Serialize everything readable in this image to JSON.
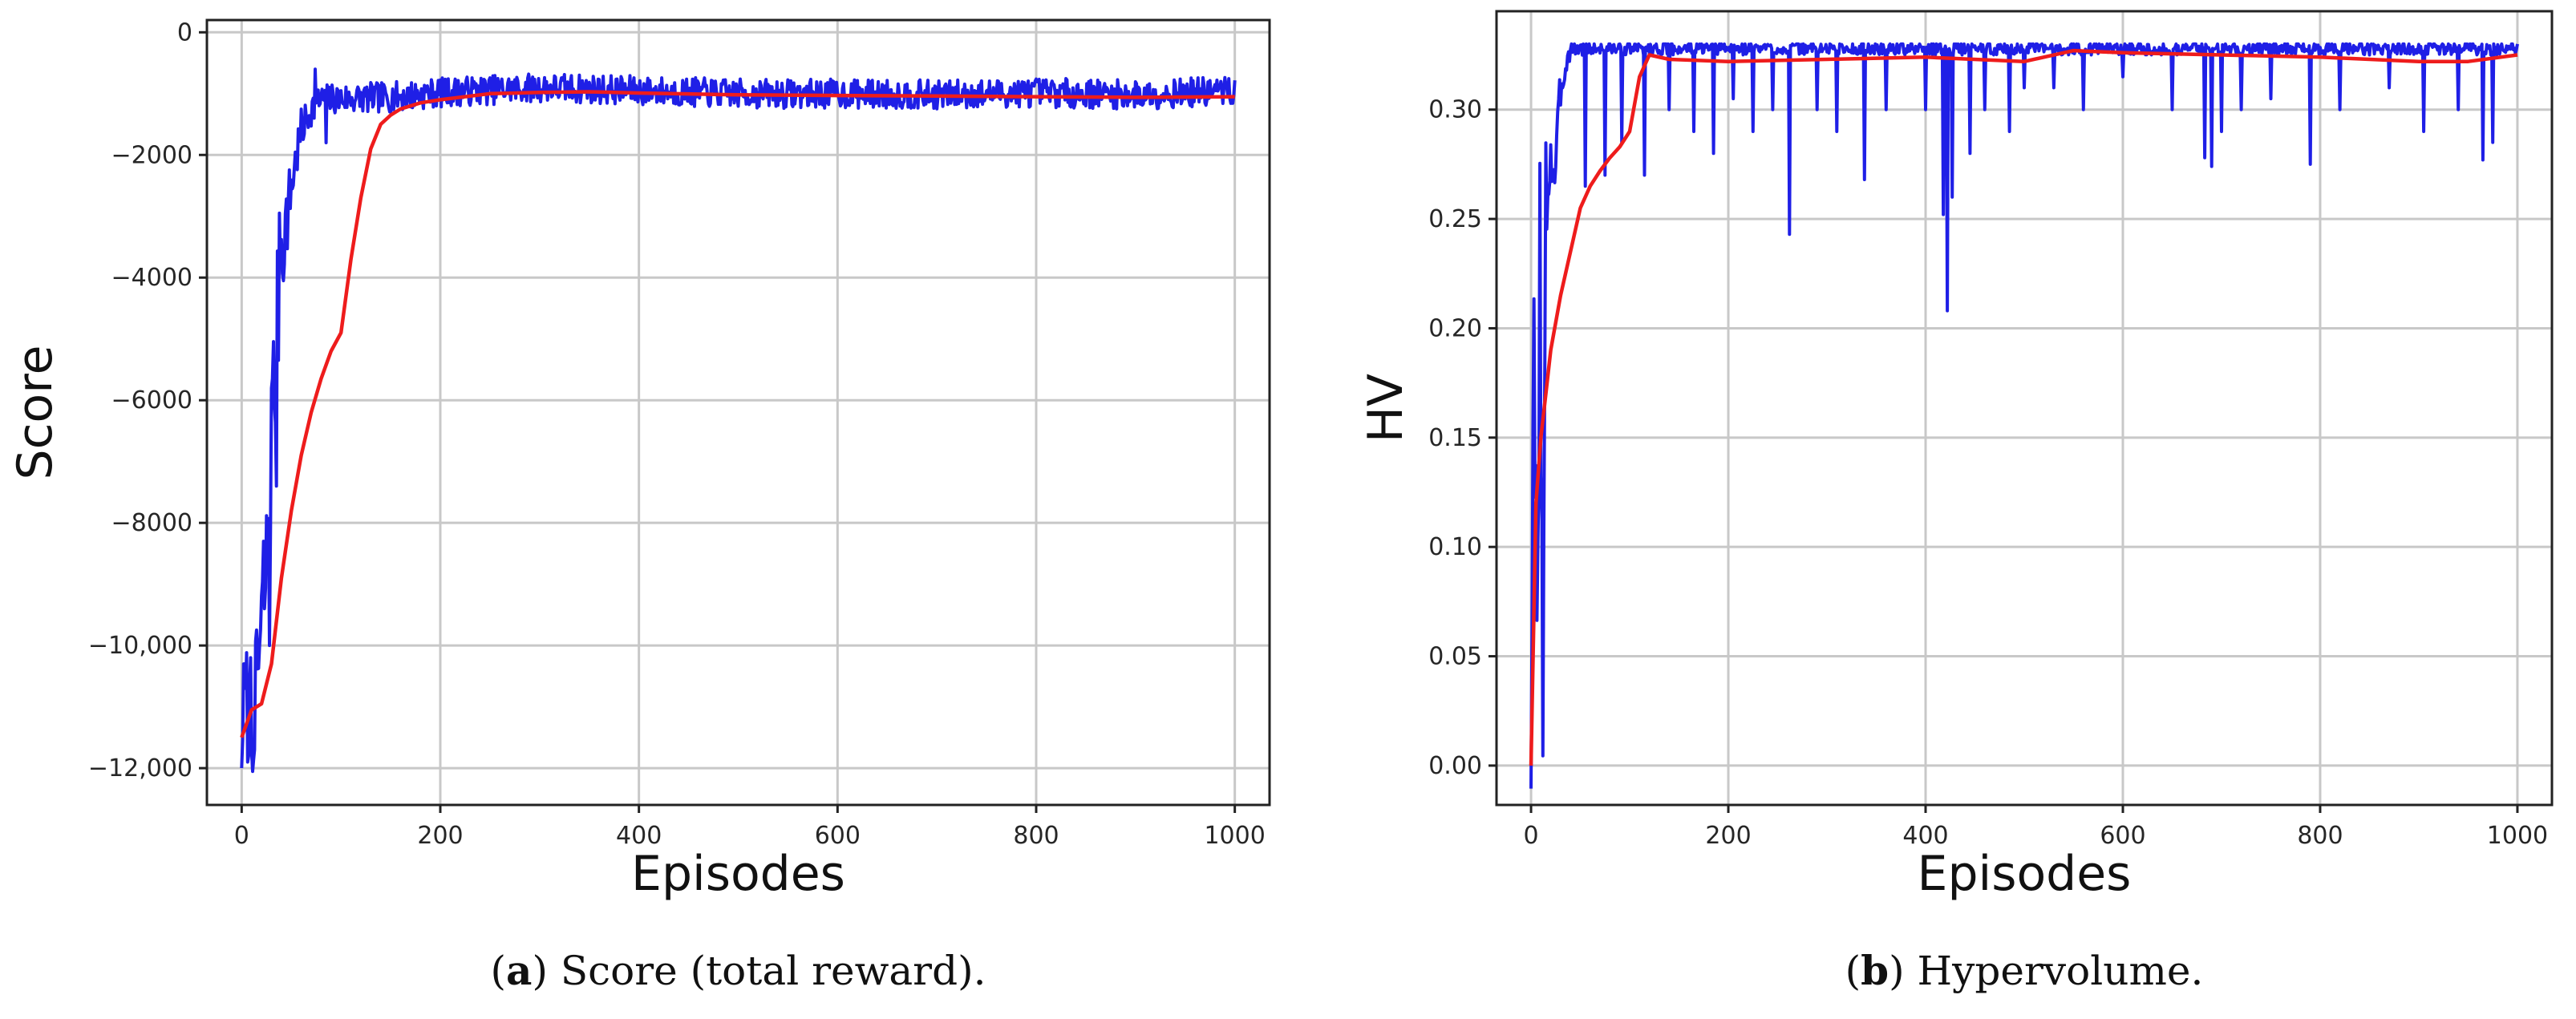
{
  "chart_data": [
    {
      "type": "line",
      "xlabel": "Episodes",
      "ylabel": "Score",
      "caption": {
        "letter": "a",
        "text": "Score (total reward)."
      },
      "xlim": [
        -35,
        1035
      ],
      "ylim": [
        -12600,
        200
      ],
      "x_ticks": [
        0,
        200,
        400,
        600,
        800,
        1000
      ],
      "x_tick_labels": [
        "0",
        "200",
        "400",
        "600",
        "800",
        "1000"
      ],
      "y_ticks": [
        0,
        -2000,
        -4000,
        -6000,
        -8000,
        -10000,
        -12000
      ],
      "y_tick_labels": [
        "0",
        "−2000",
        "−4000",
        "−6000",
        "−8000",
        "−10,000",
        "−12,000"
      ],
      "grid": true,
      "series": [
        {
          "role": "raw",
          "color": "#1f1fe6",
          "noise_seed": 7,
          "x": [
            0,
            5,
            10,
            15,
            20,
            25,
            30,
            35,
            40,
            45,
            50,
            60,
            70,
            80,
            100,
            150,
            200,
            300,
            400,
            500,
            600,
            700,
            800,
            900,
            1000
          ],
          "y": [
            -11200,
            -10800,
            -11500,
            -10600,
            -9800,
            -8800,
            -6500,
            -5200,
            -3300,
            -3100,
            -2500,
            -1600,
            -1250,
            -1100,
            -1080,
            -1060,
            -980,
            -900,
            -950,
            -1000,
            -1000,
            -1020,
            -980,
            -1020,
            -950
          ],
          "noise": [
            800,
            800,
            800,
            900,
            1100,
            1300,
            1400,
            1400,
            900,
            700,
            500,
            350,
            280,
            260,
            250,
            250,
            240,
            240,
            240,
            240,
            240,
            240,
            240,
            240,
            240
          ],
          "spikes": [
            {
              "x": 0,
              "y": -12000
            },
            {
              "x": 2,
              "y": -10300
            },
            {
              "x": 6,
              "y": -11900
            },
            {
              "x": 9,
              "y": -10200
            },
            {
              "x": 13,
              "y": -11700
            },
            {
              "x": 22,
              "y": -8300
            },
            {
              "x": 28,
              "y": -10000
            },
            {
              "x": 31,
              "y": -5650
            },
            {
              "x": 35,
              "y": -7400
            },
            {
              "x": 38,
              "y": -2950
            },
            {
              "x": 42,
              "y": -4050
            },
            {
              "x": 74,
              "y": -600
            },
            {
              "x": 85,
              "y": -1800
            }
          ]
        },
        {
          "role": "smoothed",
          "color": "#ee1c1c",
          "x": [
            0,
            10,
            20,
            30,
            40,
            50,
            60,
            70,
            80,
            90,
            100,
            110,
            120,
            130,
            140,
            150,
            160,
            180,
            200,
            250,
            300,
            350,
            400,
            500,
            600,
            700,
            800,
            900,
            1000
          ],
          "y": [
            -11500,
            -11050,
            -10950,
            -10300,
            -8900,
            -7800,
            -6900,
            -6200,
            -5650,
            -5200,
            -4900,
            -3700,
            -2700,
            -1900,
            -1500,
            -1350,
            -1250,
            -1150,
            -1100,
            -1000,
            -980,
            -970,
            -990,
            -1020,
            -1030,
            -1040,
            -1050,
            -1060,
            -1050
          ]
        }
      ]
    },
    {
      "type": "line",
      "xlabel": "Episodes",
      "ylabel": "HV",
      "caption": {
        "letter": "b",
        "text": "Hypervolume."
      },
      "xlim": [
        -35,
        1035
      ],
      "ylim": [
        -0.018,
        0.345
      ],
      "x_ticks": [
        0,
        200,
        400,
        600,
        800,
        1000
      ],
      "x_tick_labels": [
        "0",
        "200",
        "400",
        "600",
        "800",
        "1000"
      ],
      "y_ticks": [
        0.0,
        0.05,
        0.1,
        0.15,
        0.2,
        0.25,
        0.3
      ],
      "y_tick_labels": [
        "0.00",
        "0.05",
        "0.10",
        "0.15",
        "0.20",
        "0.25",
        "0.30"
      ],
      "grid": true,
      "series": [
        {
          "role": "raw",
          "color": "#1f1fe6",
          "noise_seed": 3,
          "x": [
            0,
            3,
            6,
            9,
            12,
            15,
            20,
            25,
            30,
            35,
            40,
            60,
            100,
            200,
            300,
            400,
            500,
            600,
            700,
            800,
            900,
            1000
          ],
          "y": [
            0.0,
            0.18,
            0.05,
            0.25,
            0.0,
            0.26,
            0.28,
            0.27,
            0.31,
            0.32,
            0.328,
            0.328,
            0.328,
            0.328,
            0.328,
            0.328,
            0.328,
            0.328,
            0.328,
            0.328,
            0.328,
            0.328
          ],
          "noise": [
            0.02,
            0.06,
            0.06,
            0.05,
            0.05,
            0.03,
            0.02,
            0.02,
            0.01,
            0.006,
            0.004,
            0.003,
            0.003,
            0.003,
            0.003,
            0.003,
            0.003,
            0.003,
            0.003,
            0.003,
            0.003,
            0.003
          ],
          "dips": [
            {
              "x": 55,
              "y": 0.265
            },
            {
              "x": 75,
              "y": 0.27
            },
            {
              "x": 92,
              "y": 0.285
            },
            {
              "x": 115,
              "y": 0.27
            },
            {
              "x": 140,
              "y": 0.3
            },
            {
              "x": 165,
              "y": 0.29
            },
            {
              "x": 185,
              "y": 0.28
            },
            {
              "x": 205,
              "y": 0.305
            },
            {
              "x": 225,
              "y": 0.29
            },
            {
              "x": 245,
              "y": 0.3
            },
            {
              "x": 262,
              "y": 0.243
            },
            {
              "x": 290,
              "y": 0.3
            },
            {
              "x": 310,
              "y": 0.29
            },
            {
              "x": 338,
              "y": 0.268
            },
            {
              "x": 360,
              "y": 0.3
            },
            {
              "x": 400,
              "y": 0.3
            },
            {
              "x": 418,
              "y": 0.252
            },
            {
              "x": 422,
              "y": 0.208
            },
            {
              "x": 427,
              "y": 0.26
            },
            {
              "x": 445,
              "y": 0.28
            },
            {
              "x": 460,
              "y": 0.3
            },
            {
              "x": 485,
              "y": 0.29
            },
            {
              "x": 500,
              "y": 0.31
            },
            {
              "x": 530,
              "y": 0.31
            },
            {
              "x": 560,
              "y": 0.3
            },
            {
              "x": 600,
              "y": 0.315
            },
            {
              "x": 650,
              "y": 0.3
            },
            {
              "x": 683,
              "y": 0.278
            },
            {
              "x": 690,
              "y": 0.274
            },
            {
              "x": 700,
              "y": 0.29
            },
            {
              "x": 720,
              "y": 0.3
            },
            {
              "x": 750,
              "y": 0.305
            },
            {
              "x": 790,
              "y": 0.275
            },
            {
              "x": 820,
              "y": 0.3
            },
            {
              "x": 870,
              "y": 0.31
            },
            {
              "x": 905,
              "y": 0.29
            },
            {
              "x": 940,
              "y": 0.3
            },
            {
              "x": 965,
              "y": 0.277
            },
            {
              "x": 975,
              "y": 0.285
            }
          ]
        },
        {
          "role": "smoothed",
          "color": "#ee1c1c",
          "x": [
            0,
            5,
            10,
            15,
            20,
            30,
            40,
            50,
            60,
            70,
            80,
            90,
            100,
            110,
            120,
            140,
            200,
            300,
            400,
            500,
            550,
            600,
            700,
            800,
            900,
            950,
            1000
          ],
          "y": [
            0.0,
            0.12,
            0.15,
            0.17,
            0.19,
            0.215,
            0.235,
            0.255,
            0.265,
            0.272,
            0.278,
            0.283,
            0.29,
            0.315,
            0.325,
            0.323,
            0.322,
            0.323,
            0.324,
            0.322,
            0.327,
            0.326,
            0.325,
            0.324,
            0.322,
            0.322,
            0.325
          ]
        }
      ]
    }
  ]
}
